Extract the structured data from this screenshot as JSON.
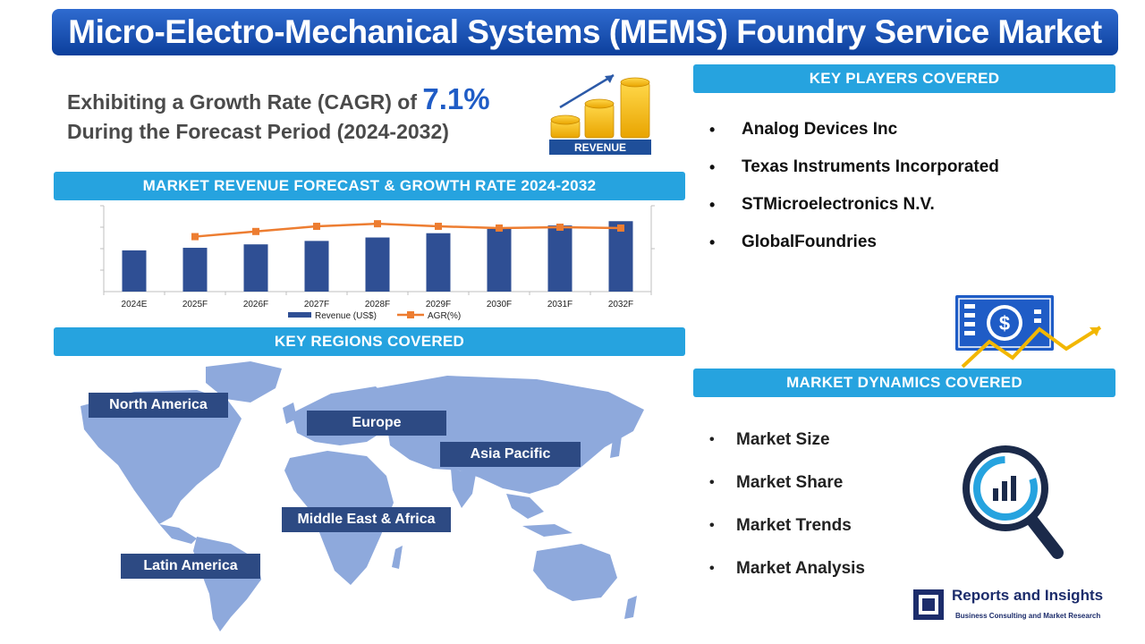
{
  "title": "Micro-Electro-Mechanical Systems (MEMS) Foundry Service Market",
  "cagr": {
    "line1_prefix": "Exhibiting a Growth Rate (CAGR) of ",
    "rate": "7.1%",
    "line2": "During the Forecast Period (2024-2032)"
  },
  "revenue_icon_label": "REVENUE",
  "sections": {
    "chart": "MARKET REVENUE FORECAST & GROWTH RATE 2024-2032",
    "regions": "KEY REGIONS COVERED",
    "players": "KEY PLAYERS COVERED",
    "dynamics": "MARKET DYNAMICS COVERED"
  },
  "chart_data": {
    "type": "bar",
    "categories": [
      "2024E",
      "2025F",
      "2026F",
      "2027F",
      "2028F",
      "2029F",
      "2030F",
      "2031F",
      "2032F"
    ],
    "series": [
      {
        "name": "Revenue (US$)",
        "kind": "bar",
        "values": [
          48,
          51,
          55,
          59,
          63,
          68,
          73,
          77,
          82
        ]
      },
      {
        "name": "AGR(%)",
        "kind": "line",
        "values": [
          null,
          6.4,
          7.0,
          7.6,
          7.9,
          7.6,
          7.4,
          7.5,
          7.4
        ]
      }
    ],
    "y_left_range": [
      0,
      100
    ],
    "y_right_range": [
      0,
      10
    ],
    "legend_position": "bottom",
    "grid": false,
    "colors": {
      "bar": "#2f4f94",
      "line": "#ed7d31"
    }
  },
  "regions": [
    "North America",
    "Europe",
    "Asia Pacific",
    "Middle East & Africa",
    "Latin America"
  ],
  "players": [
    "Analog Devices Inc",
    "Texas Instruments Incorporated",
    "STMicroelectronics N.V.",
    "GlobalFoundries"
  ],
  "dynamics": [
    "Market Size",
    "Market Share",
    "Market Trends",
    "Market Analysis"
  ],
  "bullet": "•",
  "icons": {
    "revenue": "revenue-coins-icon",
    "money": "money-growth-icon",
    "magnifier": "magnifier-chart-icon",
    "logo": "reports-insights-logo"
  },
  "brand": {
    "name": "Reports and Insights",
    "tagline": "Business Consulting and Market Research"
  },
  "colors": {
    "title_bar": "#0c3f9c",
    "section_bar": "#26a3df",
    "region_label": "#2d4a83",
    "map": "#8ea9dc",
    "accent": "#1f5cc6"
  }
}
